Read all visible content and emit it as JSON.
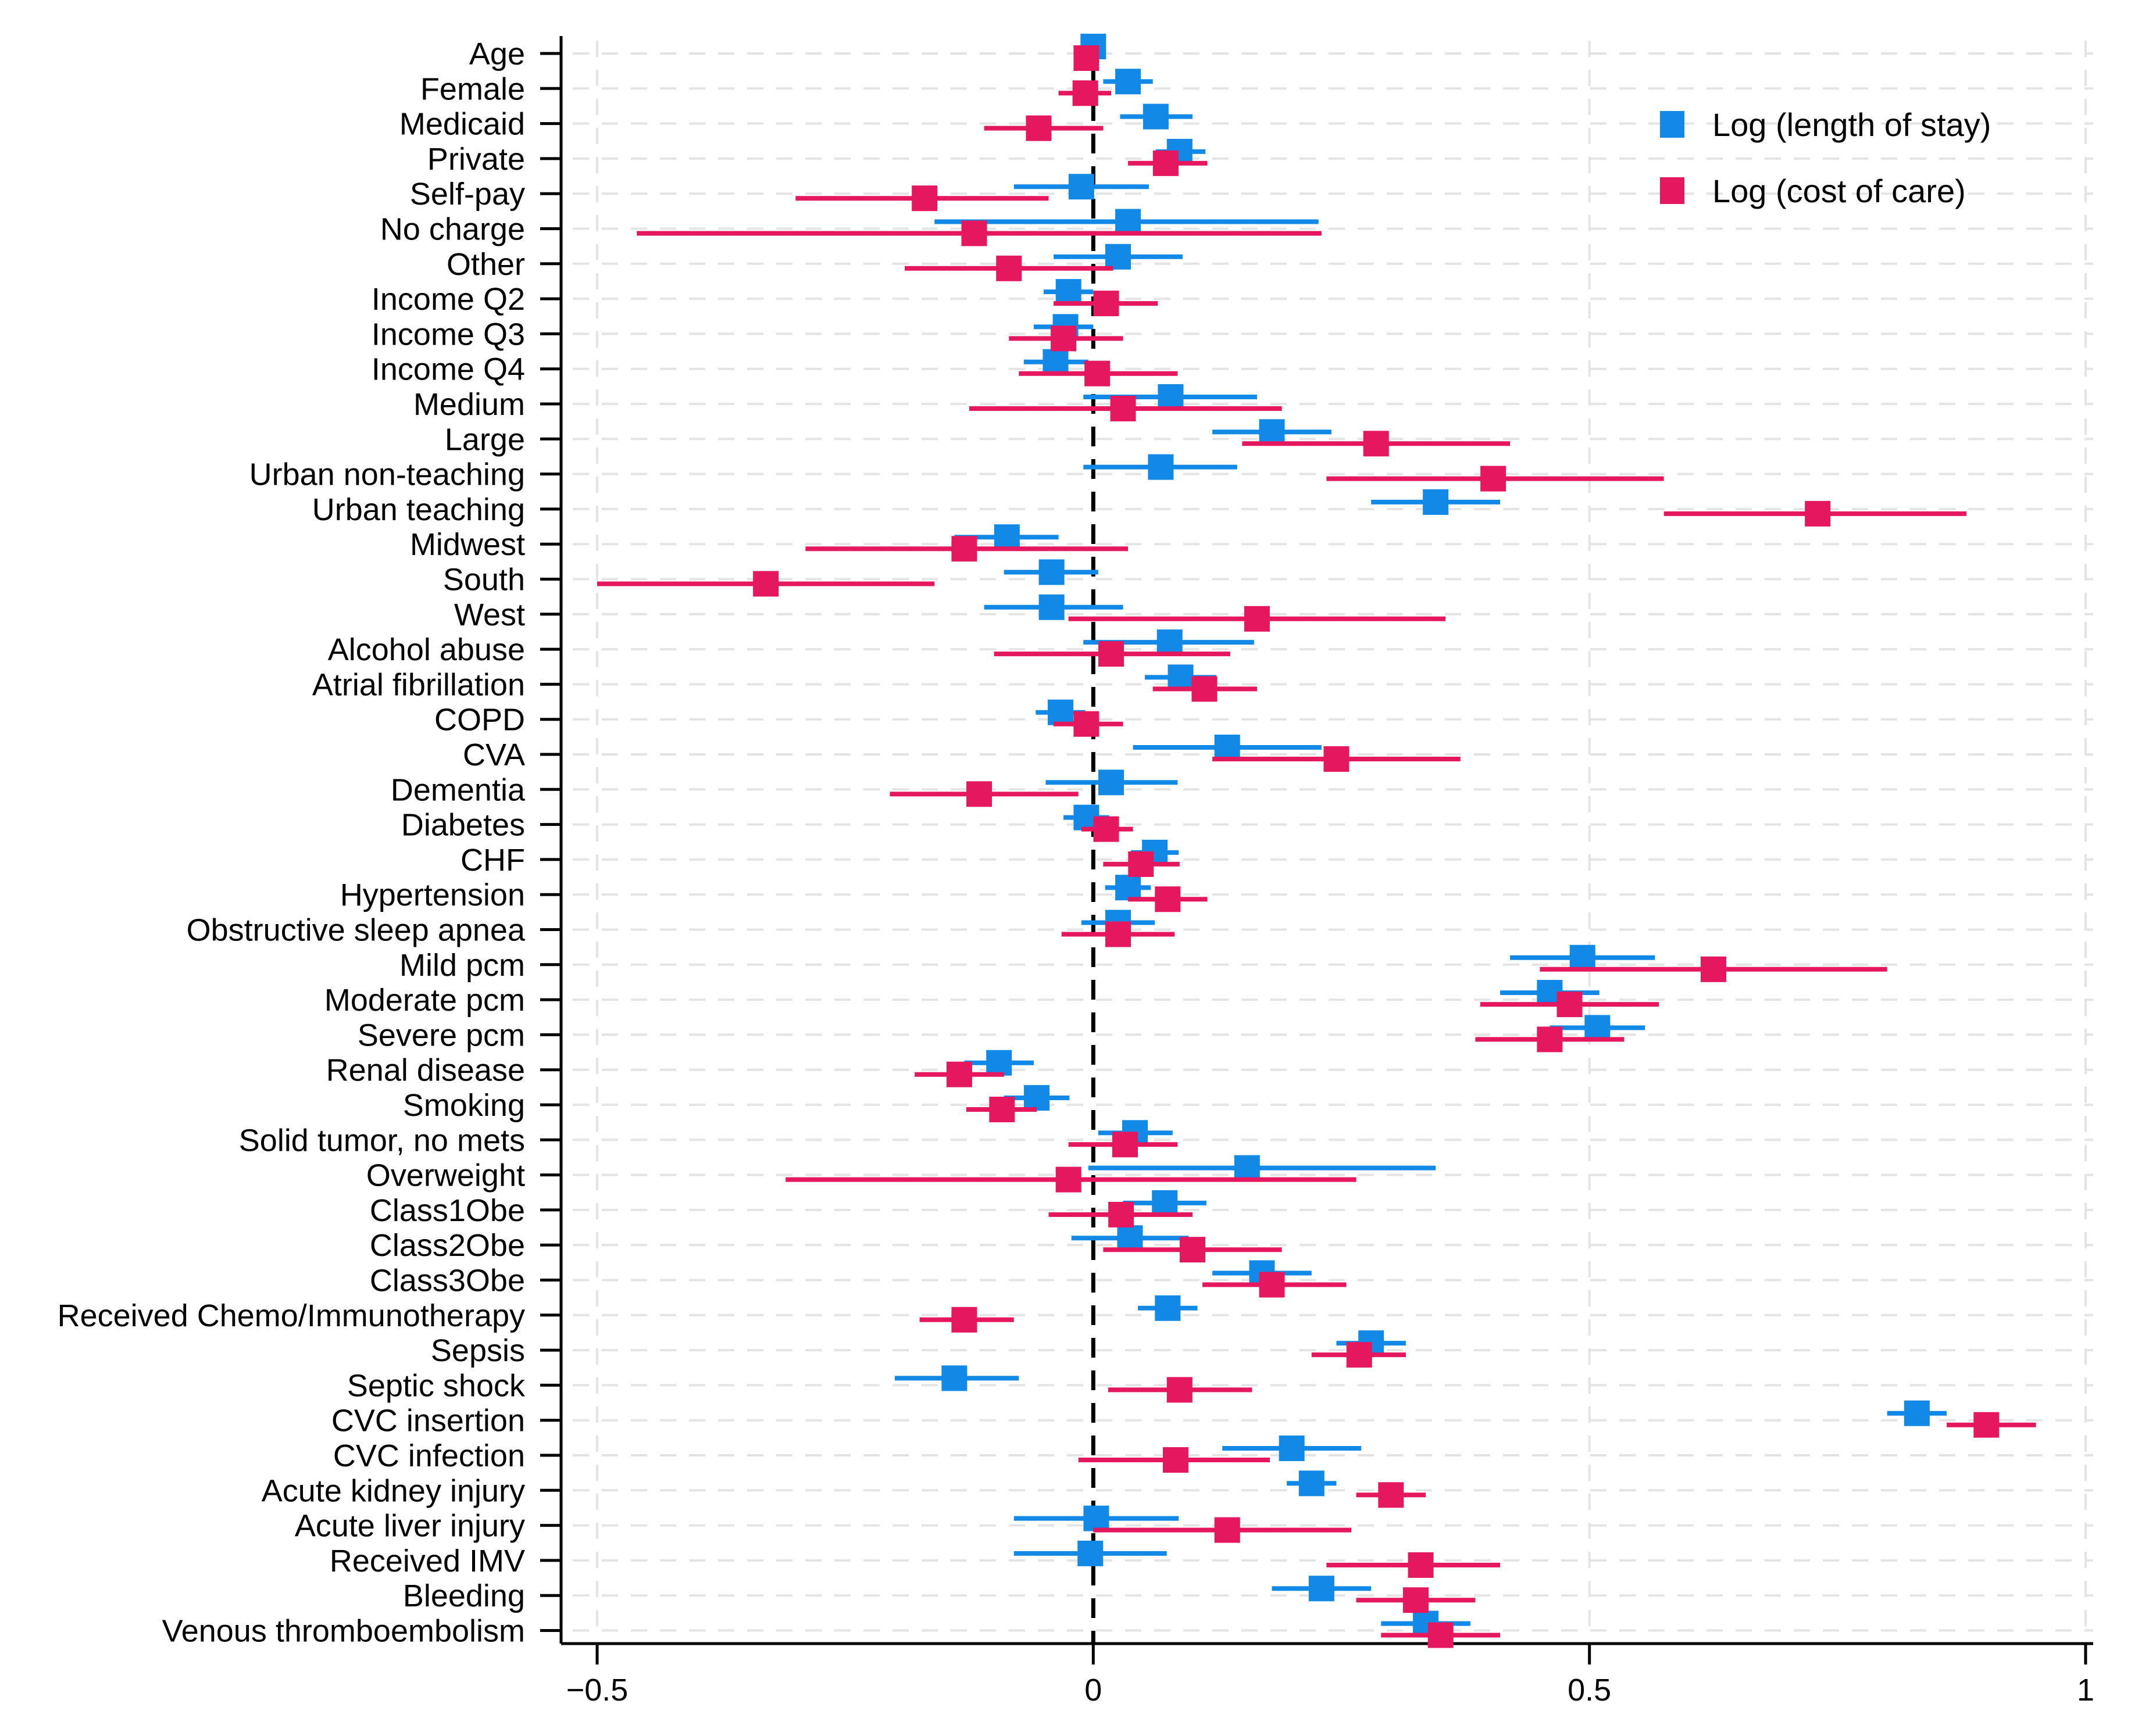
{
  "chart_data": {
    "type": "forest",
    "title": "",
    "xlabel": "",
    "ylabel": "",
    "xlim": [
      -0.5,
      1.0
    ],
    "xticks": [
      -0.5,
      0,
      0.5,
      1
    ],
    "xtick_labels": [
      "−0.5",
      "0",
      "0.5",
      "1"
    ],
    "reference_line": 0,
    "grid": true,
    "legend_position": "top-right",
    "categories": [
      "Age",
      "Female",
      "Medicaid",
      "Private",
      "Self-pay",
      "No charge",
      "Other",
      "Income Q2",
      "Income Q3",
      "Income Q4",
      "Medium",
      "Large",
      "Urban non-teaching",
      "Urban teaching",
      "Midwest",
      "South",
      "West",
      "Alcohol abuse",
      "Atrial fibrillation",
      "COPD",
      "CVA",
      "Dementia",
      "Diabetes",
      "CHF",
      "Hypertension",
      "Obstructive sleep apnea",
      "Mild pcm",
      "Moderate pcm",
      "Severe pcm",
      "Renal disease",
      "Smoking",
      "Solid tumor, no mets",
      "Overweight",
      "Class1Obe",
      "Class2Obe",
      "Class3Obe",
      "Received Chemo/Immunotherapy",
      "Sepsis",
      "Septic shock",
      "CVC insertion",
      "CVC infection",
      "Acute kidney injury",
      "Acute liver injury",
      "Received IMV",
      "Bleeding",
      "Venous thromboembolism"
    ],
    "series": [
      {
        "name": "Log (length of stay)",
        "color": "#1289e7",
        "estimates": [
          0.0,
          0.035,
          0.063,
          0.087,
          -0.012,
          0.035,
          0.025,
          -0.025,
          -0.028,
          -0.038,
          0.078,
          0.18,
          0.068,
          0.345,
          -0.087,
          -0.042,
          -0.042,
          0.077,
          0.088,
          -0.033,
          0.135,
          0.018,
          -0.007,
          0.062,
          0.035,
          0.025,
          0.493,
          0.46,
          0.508,
          -0.095,
          -0.057,
          0.042,
          0.155,
          0.072,
          0.037,
          0.17,
          0.075,
          0.28,
          -0.14,
          0.83,
          0.2,
          0.22,
          0.003,
          -0.003,
          0.23,
          0.335
        ],
        "lower": [
          -0.003,
          0.01,
          0.027,
          0.063,
          -0.08,
          -0.16,
          -0.04,
          -0.05,
          -0.06,
          -0.07,
          -0.01,
          0.12,
          -0.01,
          0.28,
          -0.14,
          -0.09,
          -0.11,
          -0.01,
          0.052,
          -0.058,
          0.04,
          -0.048,
          -0.03,
          0.038,
          0.012,
          -0.012,
          0.42,
          0.41,
          0.46,
          -0.13,
          -0.09,
          0.005,
          -0.005,
          0.03,
          -0.022,
          0.12,
          0.045,
          0.245,
          -0.2,
          0.8,
          0.13,
          0.195,
          -0.08,
          -0.08,
          0.18,
          0.29
        ],
        "upper": [
          0.003,
          0.06,
          0.1,
          0.113,
          0.056,
          0.227,
          0.09,
          0.0,
          0.0,
          -0.005,
          0.165,
          0.24,
          0.145,
          0.41,
          -0.035,
          0.005,
          0.03,
          0.162,
          0.124,
          -0.008,
          0.23,
          0.085,
          0.016,
          0.086,
          0.058,
          0.062,
          0.566,
          0.51,
          0.556,
          -0.06,
          -0.024,
          0.08,
          0.345,
          0.114,
          0.096,
          0.22,
          0.105,
          0.315,
          -0.075,
          0.86,
          0.27,
          0.245,
          0.086,
          0.074,
          0.28,
          0.38
        ]
      },
      {
        "name": "Log (cost of care)",
        "color": "#e5175e",
        "estimates": [
          -0.007,
          -0.008,
          -0.055,
          0.073,
          -0.17,
          -0.12,
          -0.085,
          0.013,
          -0.03,
          0.004,
          0.03,
          0.285,
          0.403,
          0.73,
          -0.13,
          -0.33,
          0.165,
          0.018,
          0.112,
          -0.007,
          0.245,
          -0.115,
          0.013,
          0.048,
          0.075,
          0.025,
          0.625,
          0.48,
          0.46,
          -0.135,
          -0.092,
          0.032,
          -0.025,
          0.028,
          0.1,
          0.18,
          -0.13,
          0.268,
          0.087,
          0.9,
          0.083,
          0.3,
          0.135,
          0.33,
          0.325,
          0.35
        ],
        "lower": [
          -0.017,
          -0.035,
          -0.11,
          0.035,
          -0.3,
          -0.46,
          -0.19,
          -0.04,
          -0.085,
          -0.075,
          -0.125,
          0.15,
          0.235,
          0.575,
          -0.29,
          -0.5,
          -0.025,
          -0.1,
          0.06,
          -0.04,
          0.12,
          -0.205,
          -0.012,
          0.01,
          0.035,
          -0.032,
          0.45,
          0.39,
          0.385,
          -0.18,
          -0.128,
          -0.025,
          -0.31,
          -0.045,
          0.01,
          0.11,
          -0.175,
          0.22,
          0.015,
          0.86,
          -0.015,
          0.265,
          0.0,
          0.235,
          0.265,
          0.29
        ],
        "upper": [
          0.003,
          0.018,
          0.01,
          0.115,
          -0.045,
          0.23,
          0.02,
          0.065,
          0.03,
          0.085,
          0.19,
          0.42,
          0.575,
          0.88,
          0.035,
          -0.16,
          0.355,
          0.138,
          0.165,
          0.03,
          0.37,
          -0.015,
          0.04,
          0.087,
          0.115,
          0.082,
          0.8,
          0.57,
          0.535,
          -0.09,
          -0.057,
          0.085,
          0.265,
          0.1,
          0.19,
          0.255,
          -0.08,
          0.315,
          0.16,
          0.95,
          0.178,
          0.335,
          0.26,
          0.41,
          0.385,
          0.41
        ]
      }
    ]
  }
}
